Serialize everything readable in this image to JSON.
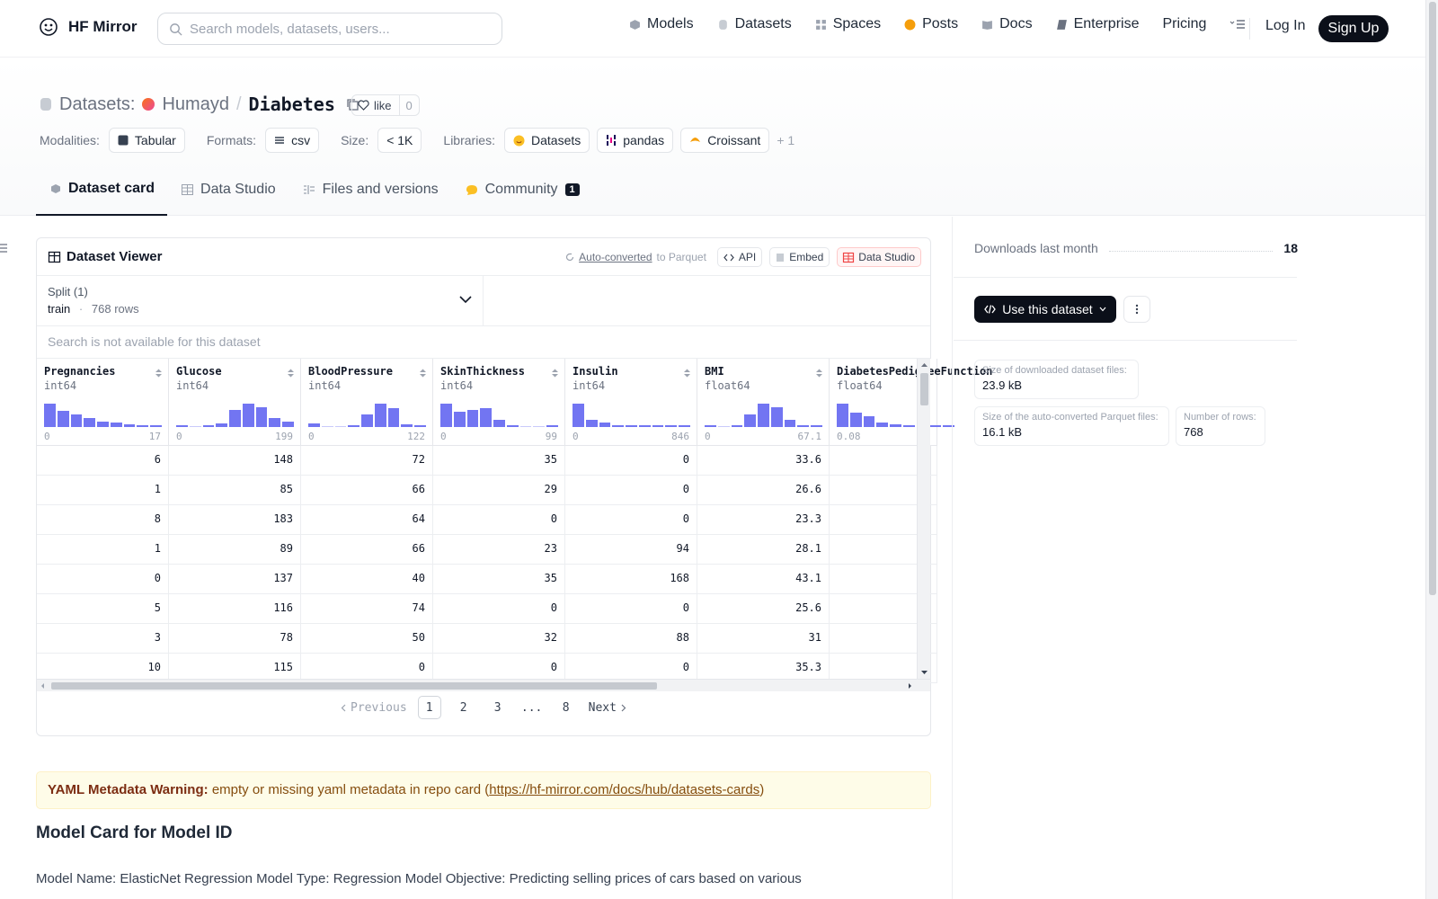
{
  "brand": {
    "name": "HF Mirror"
  },
  "search": {
    "placeholder": "Search models, datasets, users..."
  },
  "nav": {
    "links": [
      "Models",
      "Datasets",
      "Spaces",
      "Posts",
      "Docs",
      "Enterprise",
      "Pricing"
    ],
    "login": "Log In",
    "signup": "Sign Up"
  },
  "header": {
    "kind": "Datasets:",
    "owner": "Humayd",
    "sep": "/",
    "name": "Diabetes",
    "like_label": "like",
    "like_count": "0",
    "modalities_label": "Modalities:",
    "modality": "Tabular",
    "formats_label": "Formats:",
    "format": "csv",
    "size_label": "Size:",
    "size": "< 1K",
    "libraries_label": "Libraries:",
    "libraries": [
      "Datasets",
      "pandas",
      "Croissant"
    ],
    "more_libraries": "+ 1"
  },
  "tabs": [
    {
      "label": "Dataset card"
    },
    {
      "label": "Data Studio"
    },
    {
      "label": "Files and versions"
    },
    {
      "label": "Community",
      "count": "1"
    }
  ],
  "viewer": {
    "title": "Dataset Viewer",
    "auto_converted": "Auto-converted",
    "to_parquet": "to Parquet",
    "api": "API",
    "embed": "Embed",
    "data_studio": "Data Studio",
    "split_label": "Split (1)",
    "split_name": "train",
    "split_sep": "·",
    "split_rows": "768 rows",
    "search_msg": "Search is not available for this dataset",
    "columns": [
      {
        "name": "Pregnancies",
        "type": "int64",
        "min": "0",
        "max": "17",
        "hist": [
          1.0,
          0.7,
          0.55,
          0.38,
          0.25,
          0.18,
          0.1,
          0.07,
          0.05
        ]
      },
      {
        "name": "Glucose",
        "type": "int64",
        "min": "0",
        "max": "199",
        "hist": [
          0.05,
          0.0,
          0.05,
          0.15,
          0.75,
          1.0,
          0.85,
          0.4,
          0.25
        ]
      },
      {
        "name": "BloodPressure",
        "type": "int64",
        "min": "0",
        "max": "122",
        "hist": [
          0.15,
          0.0,
          0.0,
          0.05,
          0.55,
          1.0,
          0.8,
          0.1,
          0.02
        ]
      },
      {
        "name": "SkinThickness",
        "type": "int64",
        "min": "0",
        "max": "99",
        "hist": [
          1.0,
          0.65,
          0.75,
          0.8,
          0.32,
          0.05,
          0.0,
          0.0,
          0.02
        ]
      },
      {
        "name": "Insulin",
        "type": "int64",
        "min": "0",
        "max": "846",
        "hist": [
          1.0,
          0.3,
          0.18,
          0.08,
          0.05,
          0.03,
          0.02,
          0.01,
          0.01
        ]
      },
      {
        "name": "BMI",
        "type": "float64",
        "min": "0",
        "max": "67.1",
        "hist": [
          0.05,
          0.0,
          0.05,
          0.55,
          1.0,
          0.85,
          0.3,
          0.05,
          0.02
        ]
      },
      {
        "name": "DiabetesPedigreeFunction",
        "type": "float64",
        "min": "0.08",
        "max": "",
        "hist": [
          1.0,
          0.6,
          0.45,
          0.2,
          0.12,
          0.05,
          0.03,
          0.02,
          0.01
        ]
      }
    ],
    "rows": [
      [
        "6",
        "148",
        "72",
        "35",
        "0",
        "33.6",
        ""
      ],
      [
        "1",
        "85",
        "66",
        "29",
        "0",
        "26.6",
        ""
      ],
      [
        "8",
        "183",
        "64",
        "0",
        "0",
        "23.3",
        ""
      ],
      [
        "1",
        "89",
        "66",
        "23",
        "94",
        "28.1",
        ""
      ],
      [
        "0",
        "137",
        "40",
        "35",
        "168",
        "43.1",
        ""
      ],
      [
        "5",
        "116",
        "74",
        "0",
        "0",
        "25.6",
        ""
      ],
      [
        "3",
        "78",
        "50",
        "32",
        "88",
        "31",
        ""
      ],
      [
        "10",
        "115",
        "0",
        "0",
        "0",
        "35.3",
        ""
      ]
    ],
    "pager": {
      "previous": "Previous",
      "pages": [
        "1",
        "2",
        "3",
        "...",
        "8"
      ],
      "next": "Next",
      "current": "1"
    }
  },
  "warning": {
    "title": "YAML Metadata Warning:",
    "text": "empty or missing yaml metadata in repo card (",
    "link": "https://hf-mirror.com/docs/hub/datasets-cards",
    "close": ")"
  },
  "card": {
    "heading": "Model Card for Model ID",
    "paragraph": "Model Name: ElasticNet Regression Model Type: Regression Model Objective: Predicting selling prices of cars based on various"
  },
  "sidebar": {
    "downloads_label": "Downloads last month",
    "downloads_value": "18",
    "use_dataset": "Use this dataset",
    "stats": [
      {
        "k": "Size of downloaded dataset files:",
        "v": "23.9 kB"
      },
      {
        "k": "Size of the auto-converted Parquet files:",
        "v": "16.1 kB"
      },
      {
        "k": "Number of rows:",
        "v": "768"
      }
    ]
  },
  "colors": {
    "accent": "#6366f1",
    "dark": "#0b0f19",
    "warning_bg": "#fefce8"
  }
}
